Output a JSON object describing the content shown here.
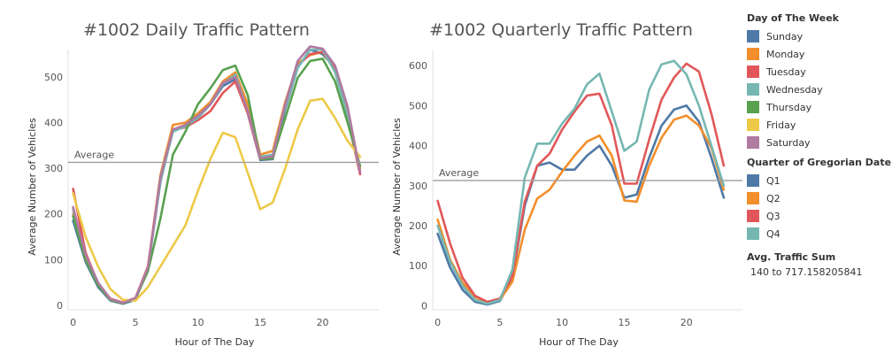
{
  "chart_data": [
    {
      "type": "line",
      "title": "#1002 Daily Traffic Pattern",
      "xlabel": "Hour of The Day",
      "ylabel": "Average Number of Vehicles",
      "xlim": [
        -0.4,
        24.5
      ],
      "ylim": [
        -10,
        560
      ],
      "xticks": [
        0,
        5,
        10,
        15,
        20
      ],
      "yticks": [
        0,
        100,
        200,
        300,
        400,
        500
      ],
      "average": {
        "label": "Average",
        "value": 313
      },
      "x": [
        0,
        1,
        2,
        3,
        4,
        5,
        6,
        7,
        8,
        9,
        10,
        11,
        12,
        13,
        14,
        15,
        16,
        17,
        18,
        19,
        20,
        21,
        22,
        23
      ],
      "series": [
        {
          "name": "Sunday",
          "color": "#4e79a7",
          "values": [
            185,
            95,
            40,
            10,
            3,
            12,
            80,
            270,
            385,
            390,
            410,
            440,
            480,
            495,
            420,
            318,
            320,
            430,
            520,
            560,
            550,
            520,
            425,
            290
          ]
        },
        {
          "name": "Monday",
          "color": "#f28e2b",
          "values": [
            200,
            100,
            45,
            12,
            5,
            15,
            85,
            285,
            395,
            400,
            420,
            445,
            490,
            510,
            440,
            330,
            338,
            445,
            530,
            548,
            555,
            515,
            420,
            300
          ]
        },
        {
          "name": "Tuesday",
          "color": "#e15759",
          "values": [
            255,
            115,
            48,
            14,
            6,
            16,
            85,
            280,
            383,
            390,
            405,
            425,
            465,
            490,
            420,
            320,
            322,
            440,
            525,
            550,
            555,
            520,
            410,
            287
          ]
        },
        {
          "name": "Wednesday",
          "color": "#76b7b2",
          "values": [
            210,
            105,
            46,
            12,
            5,
            15,
            80,
            272,
            380,
            392,
            410,
            440,
            485,
            505,
            425,
            325,
            330,
            435,
            520,
            560,
            560,
            510,
            415,
            293
          ]
        },
        {
          "name": "Thursday",
          "color": "#59a14f",
          "values": [
            195,
            100,
            44,
            11,
            4,
            14,
            75,
            190,
            330,
            380,
            440,
            475,
            515,
            525,
            460,
            320,
            322,
            410,
            498,
            535,
            540,
            490,
            400,
            305
          ]
        },
        {
          "name": "Friday",
          "color": "#edc948",
          "values": [
            245,
            150,
            85,
            35,
            12,
            10,
            40,
            85,
            130,
            175,
            250,
            320,
            378,
            368,
            290,
            210,
            225,
            300,
            385,
            448,
            452,
            410,
            360,
            325
          ]
        },
        {
          "name": "Saturday",
          "color": "#b07aa1",
          "values": [
            215,
            110,
            50,
            13,
            5,
            16,
            83,
            280,
            385,
            395,
            415,
            440,
            487,
            500,
            425,
            322,
            326,
            440,
            535,
            567,
            562,
            525,
            435,
            292
          ]
        }
      ]
    },
    {
      "type": "line",
      "title": "#1002 Quarterly Traffic Pattern",
      "xlabel": "Hour of The Day",
      "ylabel": "Average Number of Vehicles",
      "xlim": [
        -0.4,
        24.5
      ],
      "ylim": [
        -10,
        640
      ],
      "xticks": [
        0,
        5,
        10,
        15,
        20
      ],
      "yticks": [
        0,
        100,
        200,
        300,
        400,
        500,
        600
      ],
      "average": {
        "label": "Average",
        "value": 313
      },
      "x": [
        0,
        1,
        2,
        3,
        4,
        5,
        6,
        7,
        8,
        9,
        10,
        11,
        12,
        13,
        14,
        15,
        16,
        17,
        18,
        19,
        20,
        21,
        22,
        23
      ],
      "series": [
        {
          "name": "Q1",
          "color": "#4e79a7",
          "values": [
            180,
            95,
            40,
            10,
            3,
            12,
            70,
            250,
            350,
            358,
            340,
            340,
            375,
            400,
            350,
            270,
            278,
            370,
            450,
            490,
            500,
            460,
            370,
            270
          ]
        },
        {
          "name": "Q2",
          "color": "#f28e2b",
          "values": [
            215,
            115,
            58,
            22,
            8,
            15,
            60,
            190,
            268,
            290,
            335,
            375,
            410,
            425,
            375,
            263,
            260,
            350,
            420,
            465,
            475,
            450,
            395,
            290
          ]
        },
        {
          "name": "Q3",
          "color": "#e15759",
          "values": [
            262,
            155,
            70,
            25,
            10,
            18,
            75,
            260,
            350,
            380,
            440,
            485,
            525,
            530,
            450,
            305,
            305,
            415,
            515,
            570,
            605,
            585,
            480,
            350
          ]
        },
        {
          "name": "Q4",
          "color": "#76b7b2",
          "values": [
            200,
            110,
            50,
            15,
            5,
            15,
            90,
            320,
            405,
            405,
            455,
            492,
            553,
            580,
            485,
            387,
            410,
            540,
            603,
            612,
            578,
            500,
            400,
            300
          ]
        }
      ]
    }
  ],
  "legend": {
    "day_title": "Day of The Week",
    "days": [
      {
        "label": "Sunday",
        "color": "#4e79a7"
      },
      {
        "label": "Monday",
        "color": "#f28e2b"
      },
      {
        "label": "Tuesday",
        "color": "#e15759"
      },
      {
        "label": "Wednesday",
        "color": "#76b7b2"
      },
      {
        "label": "Thursday",
        "color": "#59a14f"
      },
      {
        "label": "Friday",
        "color": "#edc948"
      },
      {
        "label": "Saturday",
        "color": "#b07aa1"
      }
    ],
    "quarter_title": "Quarter of Gregorian Date",
    "quarters": [
      {
        "label": "Q1",
        "color": "#4e79a7"
      },
      {
        "label": "Q2",
        "color": "#f28e2b"
      },
      {
        "label": "Q3",
        "color": "#e15759"
      },
      {
        "label": "Q4",
        "color": "#76b7b2"
      }
    ],
    "size_title": "Avg. Traffic Sum",
    "size_range": "140 to 717.158205841"
  }
}
